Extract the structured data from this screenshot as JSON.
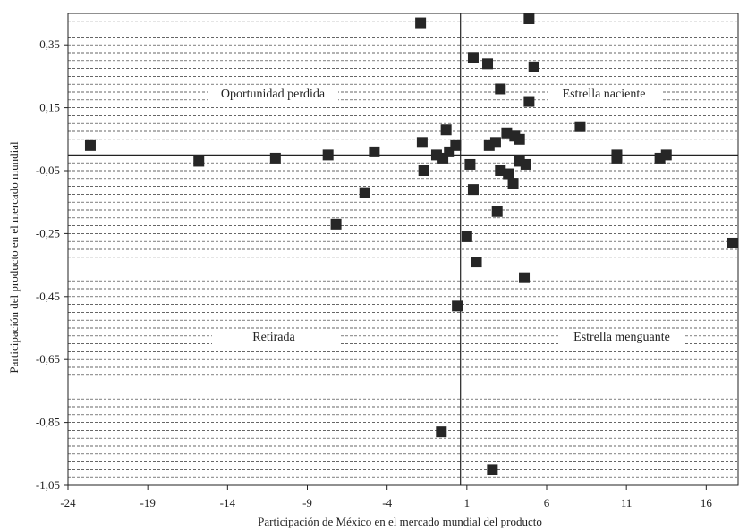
{
  "chart_data": {
    "type": "scatter",
    "xlabel": "Participación de México en el mercado mundial del producto",
    "ylabel": "Participación del producto en el mercado mundial",
    "xlim": [
      -24,
      18
    ],
    "ylim": [
      -1.05,
      0.45
    ],
    "x_ticks": [
      -24,
      -19,
      -14,
      -9,
      -4,
      1,
      6,
      11,
      16
    ],
    "y_ticks": [
      -1.05,
      -0.85,
      -0.65,
      -0.45,
      -0.25,
      -0.05,
      0.15,
      0.35
    ],
    "x_tick_labels": [
      "-24",
      "-19",
      "-14",
      "-9",
      "-4",
      "1",
      "6",
      "11",
      "16"
    ],
    "y_tick_labels": [
      "-1,05",
      "-0,85",
      "-0,65",
      "-0,45",
      "-0,25",
      "-0,05",
      "0,15",
      "0,35"
    ],
    "y_gridline_step": 0.025,
    "reference_lines": {
      "x": 0.6,
      "y": 0.0
    },
    "quadrant_labels": {
      "top_left": "Oportunidad perdida",
      "top_right": "Estrella naciente",
      "bottom_left": "Retirada",
      "bottom_right": "Estrella menguante"
    },
    "marker_color": "#262626",
    "points": [
      {
        "x": -22.6,
        "y": 0.03
      },
      {
        "x": -15.8,
        "y": -0.02
      },
      {
        "x": -11.0,
        "y": -0.01
      },
      {
        "x": -7.7,
        "y": 0.0
      },
      {
        "x": -7.2,
        "y": -0.22
      },
      {
        "x": -5.4,
        "y": -0.12
      },
      {
        "x": -4.8,
        "y": 0.01
      },
      {
        "x": -1.9,
        "y": 0.42
      },
      {
        "x": -1.8,
        "y": 0.04
      },
      {
        "x": -1.7,
        "y": -0.05
      },
      {
        "x": -0.9,
        "y": 0.0
      },
      {
        "x": -0.5,
        "y": -0.01
      },
      {
        "x": -0.3,
        "y": 0.08
      },
      {
        "x": -0.1,
        "y": 0.01
      },
      {
        "x": 0.3,
        "y": 0.03
      },
      {
        "x": 0.4,
        "y": -0.48
      },
      {
        "x": -0.6,
        "y": -0.88
      },
      {
        "x": 1.0,
        "y": -0.26
      },
      {
        "x": 1.2,
        "y": -0.03
      },
      {
        "x": 1.4,
        "y": -0.11
      },
      {
        "x": 1.4,
        "y": 0.31
      },
      {
        "x": 1.6,
        "y": -0.34
      },
      {
        "x": 2.3,
        "y": 0.29
      },
      {
        "x": 2.4,
        "y": 0.03
      },
      {
        "x": 2.6,
        "y": -1.0
      },
      {
        "x": 2.8,
        "y": 0.04
      },
      {
        "x": 2.9,
        "y": -0.18
      },
      {
        "x": 3.1,
        "y": 0.21
      },
      {
        "x": 3.1,
        "y": -0.05
      },
      {
        "x": 3.5,
        "y": 0.07
      },
      {
        "x": 3.6,
        "y": -0.06
      },
      {
        "x": 3.9,
        "y": -0.09
      },
      {
        "x": 4.0,
        "y": 0.06
      },
      {
        "x": 4.3,
        "y": -0.02
      },
      {
        "x": 4.3,
        "y": 0.05
      },
      {
        "x": 4.6,
        "y": -0.39
      },
      {
        "x": 4.7,
        "y": -0.03
      },
      {
        "x": 4.9,
        "y": 0.17
      },
      {
        "x": 4.9,
        "y": 0.44
      },
      {
        "x": 5.2,
        "y": 0.28
      },
      {
        "x": 8.1,
        "y": 0.09
      },
      {
        "x": 10.4,
        "y": 0.0
      },
      {
        "x": 10.4,
        "y": -0.01
      },
      {
        "x": 13.1,
        "y": -0.01
      },
      {
        "x": 13.5,
        "y": 0.0
      },
      {
        "x": 18.0,
        "y": -0.28
      }
    ]
  }
}
